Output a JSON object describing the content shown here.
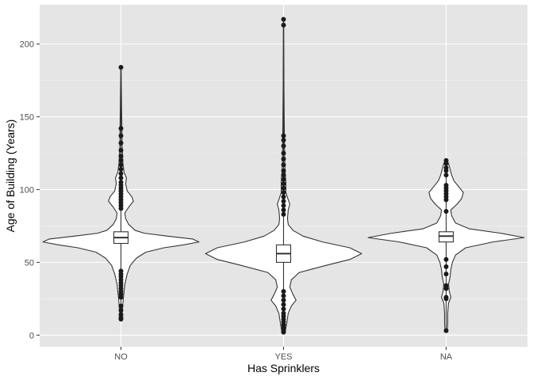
{
  "chart_data": {
    "type": "violin",
    "xlabel": "Has Sprinklers",
    "ylabel": "Age of Building (Years)",
    "categories": [
      "NO",
      "YES",
      "NA"
    ],
    "ylim": [
      -8,
      227
    ],
    "yticks": [
      0,
      50,
      100,
      150,
      200
    ],
    "grid": true,
    "colors": {
      "panel": "#e5e5e5",
      "grid_major": "#ffffff",
      "grid_minor": "#f2f2f2",
      "violin_fill": "#ffffff",
      "stroke": "#333333",
      "point": "#1a1a1a"
    },
    "series": [
      {
        "category": "NO",
        "min": 11,
        "q1": 63,
        "median": 67,
        "q3": 71,
        "max": 184,
        "whisker_low": 45,
        "whisker_high": 86,
        "outliers": [
          184,
          142,
          137,
          132,
          127,
          123,
          120,
          117,
          114,
          111,
          108,
          105,
          103,
          101,
          99,
          97,
          95,
          93,
          91,
          89,
          87,
          44,
          42,
          40,
          38,
          36,
          34,
          32,
          30,
          28,
          26,
          20,
          17,
          14,
          12,
          11
        ],
        "density": [
          [
            11,
            0.01
          ],
          [
            25,
            0.03
          ],
          [
            35,
            0.05
          ],
          [
            42,
            0.08
          ],
          [
            48,
            0.12
          ],
          [
            53,
            0.2
          ],
          [
            57,
            0.32
          ],
          [
            60,
            0.55
          ],
          [
            62,
            0.8
          ],
          [
            64,
            1.0
          ],
          [
            66,
            0.92
          ],
          [
            68,
            0.6
          ],
          [
            70,
            0.3
          ],
          [
            72,
            0.18
          ],
          [
            76,
            0.1
          ],
          [
            80,
            0.06
          ],
          [
            84,
            0.05
          ],
          [
            88,
            0.1
          ],
          [
            92,
            0.16
          ],
          [
            95,
            0.14
          ],
          [
            99,
            0.08
          ],
          [
            104,
            0.06
          ],
          [
            108,
            0.07
          ],
          [
            112,
            0.04
          ],
          [
            118,
            0.025
          ],
          [
            130,
            0.015
          ],
          [
            150,
            0.01
          ],
          [
            170,
            0.005
          ],
          [
            184,
            0.002
          ]
        ]
      },
      {
        "category": "YES",
        "min": 2,
        "q1": 50,
        "median": 56,
        "q3": 62,
        "max": 217,
        "whisker_low": 32,
        "whisker_high": 80,
        "outliers": [
          217,
          213,
          137,
          134,
          130,
          125,
          121,
          117,
          113,
          110,
          107,
          104,
          101,
          98,
          95,
          92,
          89,
          86,
          83,
          30,
          27,
          24,
          21,
          18,
          15,
          13,
          11,
          9,
          7,
          5,
          3,
          2
        ],
        "density": [
          [
            2,
            0.02
          ],
          [
            8,
            0.04
          ],
          [
            15,
            0.06
          ],
          [
            20,
            0.1
          ],
          [
            24,
            0.16
          ],
          [
            28,
            0.12
          ],
          [
            33,
            0.08
          ],
          [
            38,
            0.1
          ],
          [
            43,
            0.2
          ],
          [
            48,
            0.55
          ],
          [
            52,
            0.85
          ],
          [
            56,
            1.0
          ],
          [
            60,
            0.85
          ],
          [
            64,
            0.5
          ],
          [
            68,
            0.25
          ],
          [
            72,
            0.12
          ],
          [
            76,
            0.06
          ],
          [
            80,
            0.05
          ],
          [
            86,
            0.06
          ],
          [
            90,
            0.08
          ],
          [
            93,
            0.06
          ],
          [
            98,
            0.03
          ],
          [
            105,
            0.03
          ],
          [
            112,
            0.02
          ],
          [
            120,
            0.015
          ],
          [
            140,
            0.01
          ],
          [
            170,
            0.005
          ],
          [
            200,
            0.003
          ],
          [
            217,
            0.002
          ]
        ]
      },
      {
        "category": "NA",
        "min": 3,
        "q1": 64,
        "median": 68,
        "q3": 71,
        "max": 120,
        "whisker_low": 57,
        "whisker_high": 78,
        "outliers": [
          120,
          118,
          115,
          113,
          110,
          103,
          101,
          99,
          97,
          95,
          93,
          85,
          52,
          47,
          42,
          34,
          32,
          26,
          25,
          3
        ],
        "density": [
          [
            3,
            0.015
          ],
          [
            8,
            0.02
          ],
          [
            15,
            0.02
          ],
          [
            22,
            0.03
          ],
          [
            26,
            0.06
          ],
          [
            30,
            0.04
          ],
          [
            35,
            0.03
          ],
          [
            40,
            0.05
          ],
          [
            45,
            0.06
          ],
          [
            50,
            0.08
          ],
          [
            55,
            0.12
          ],
          [
            60,
            0.25
          ],
          [
            64,
            0.6
          ],
          [
            67,
            1.0
          ],
          [
            70,
            0.7
          ],
          [
            73,
            0.3
          ],
          [
            77,
            0.12
          ],
          [
            82,
            0.07
          ],
          [
            86,
            0.06
          ],
          [
            90,
            0.14
          ],
          [
            94,
            0.2
          ],
          [
            98,
            0.22
          ],
          [
            102,
            0.16
          ],
          [
            106,
            0.1
          ],
          [
            110,
            0.07
          ],
          [
            114,
            0.05
          ],
          [
            118,
            0.03
          ],
          [
            120,
            0.01
          ]
        ]
      }
    ]
  }
}
